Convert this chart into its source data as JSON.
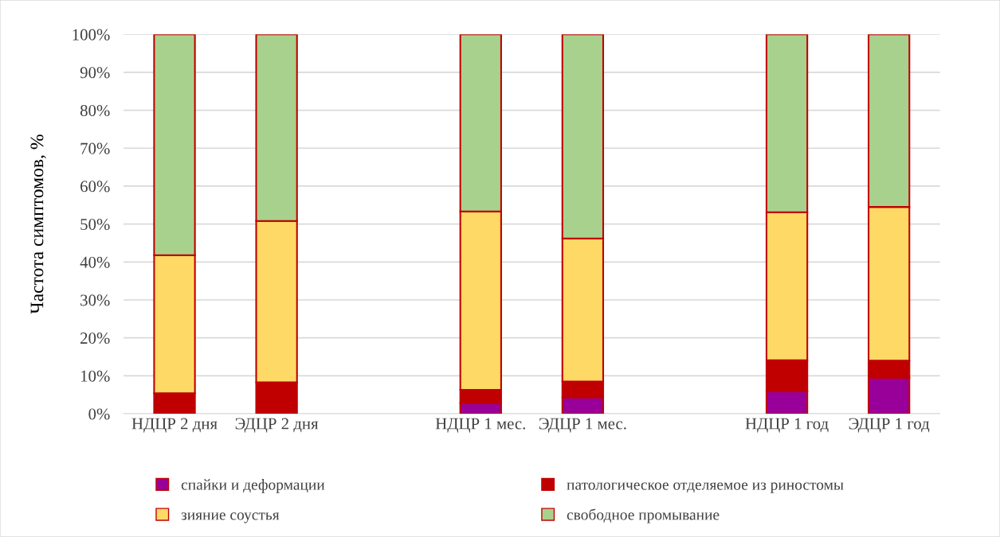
{
  "chart_data": {
    "type": "bar",
    "stacked": true,
    "ylabel": "Частота симптомов, %",
    "categories": [
      "НДЦР 2 дня",
      "ЭДЦР 2 дня",
      null,
      "НДЦР 1 мес.",
      "ЭДЦР 1 мес.",
      null,
      "НДЦР 1 год",
      "ЭДЦР 1 год"
    ],
    "series": [
      {
        "name": "спайки и деформации",
        "color": "#990099",
        "values": [
          0,
          0,
          null,
          2.8,
          4.3,
          null,
          5.9,
          9.5
        ]
      },
      {
        "name": "патологическое отделяемое из риностомы",
        "color": "#c00000",
        "values": [
          5.4,
          8.3,
          null,
          3.5,
          4.2,
          null,
          8.2,
          4.5
        ]
      },
      {
        "name": "зияние соустья",
        "color": "#ffd966",
        "values": [
          36.4,
          42.5,
          null,
          47.0,
          37.7,
          null,
          39.0,
          40.5
        ]
      },
      {
        "name": "свободное промывание",
        "color": "#a9d18e",
        "values": [
          58.2,
          49.2,
          null,
          46.7,
          53.8,
          null,
          46.9,
          45.5
        ]
      }
    ],
    "ylim": [
      0,
      100
    ],
    "yticks": [
      {
        "value": 0,
        "label": "0%"
      },
      {
        "value": 10,
        "label": "10%"
      },
      {
        "value": 20,
        "label": "20%"
      },
      {
        "value": 30,
        "label": "30%"
      },
      {
        "value": 40,
        "label": "40%"
      },
      {
        "value": 50,
        "label": "50%"
      },
      {
        "value": 60,
        "label": "60%"
      },
      {
        "value": 70,
        "label": "70%"
      },
      {
        "value": 80,
        "label": "80%"
      },
      {
        "value": 90,
        "label": "90%"
      },
      {
        "value": 100,
        "label": "100%"
      }
    ],
    "grid": "y",
    "legend": "bottom"
  }
}
